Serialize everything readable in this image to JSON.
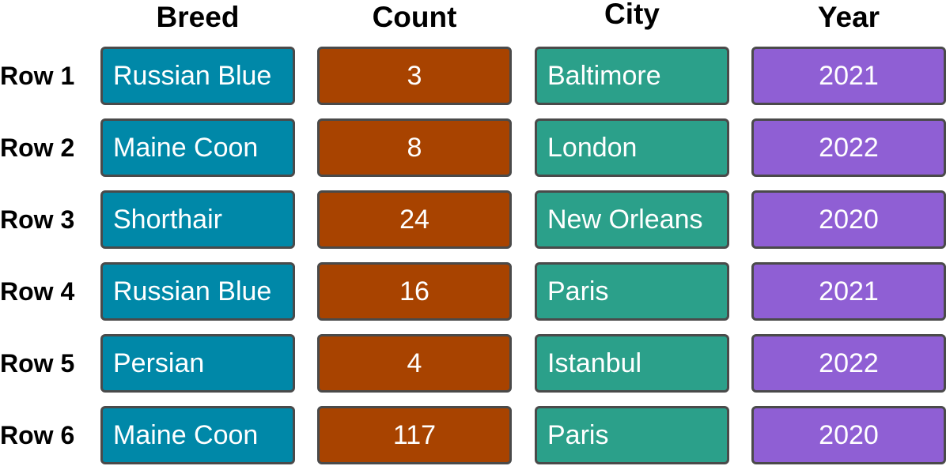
{
  "columns": [
    {
      "label": "Breed",
      "color": "#0088a8",
      "align": "left"
    },
    {
      "label": "Count",
      "color": "#a84300",
      "align": "center"
    },
    {
      "label": "City",
      "color": "#2ba08a",
      "align": "left"
    },
    {
      "label": "Year",
      "color": "#8f5fd4",
      "align": "center"
    }
  ],
  "rows": [
    {
      "label": "Row 1",
      "cells": [
        "Russian Blue",
        "3",
        "Baltimore",
        "2021"
      ]
    },
    {
      "label": "Row 2",
      "cells": [
        "Maine Coon",
        "8",
        "London",
        "2022"
      ]
    },
    {
      "label": "Row 3",
      "cells": [
        "Shorthair",
        "24",
        "New Orleans",
        "2020"
      ]
    },
    {
      "label": "Row 4",
      "cells": [
        "Russian Blue",
        "16",
        "Paris",
        "2021"
      ]
    },
    {
      "label": "Row 5",
      "cells": [
        "Persian",
        "4",
        "Istanbul",
        "2022"
      ]
    },
    {
      "label": "Row 6",
      "cells": [
        "Maine Coon",
        "117",
        "Paris",
        "2020"
      ]
    }
  ]
}
